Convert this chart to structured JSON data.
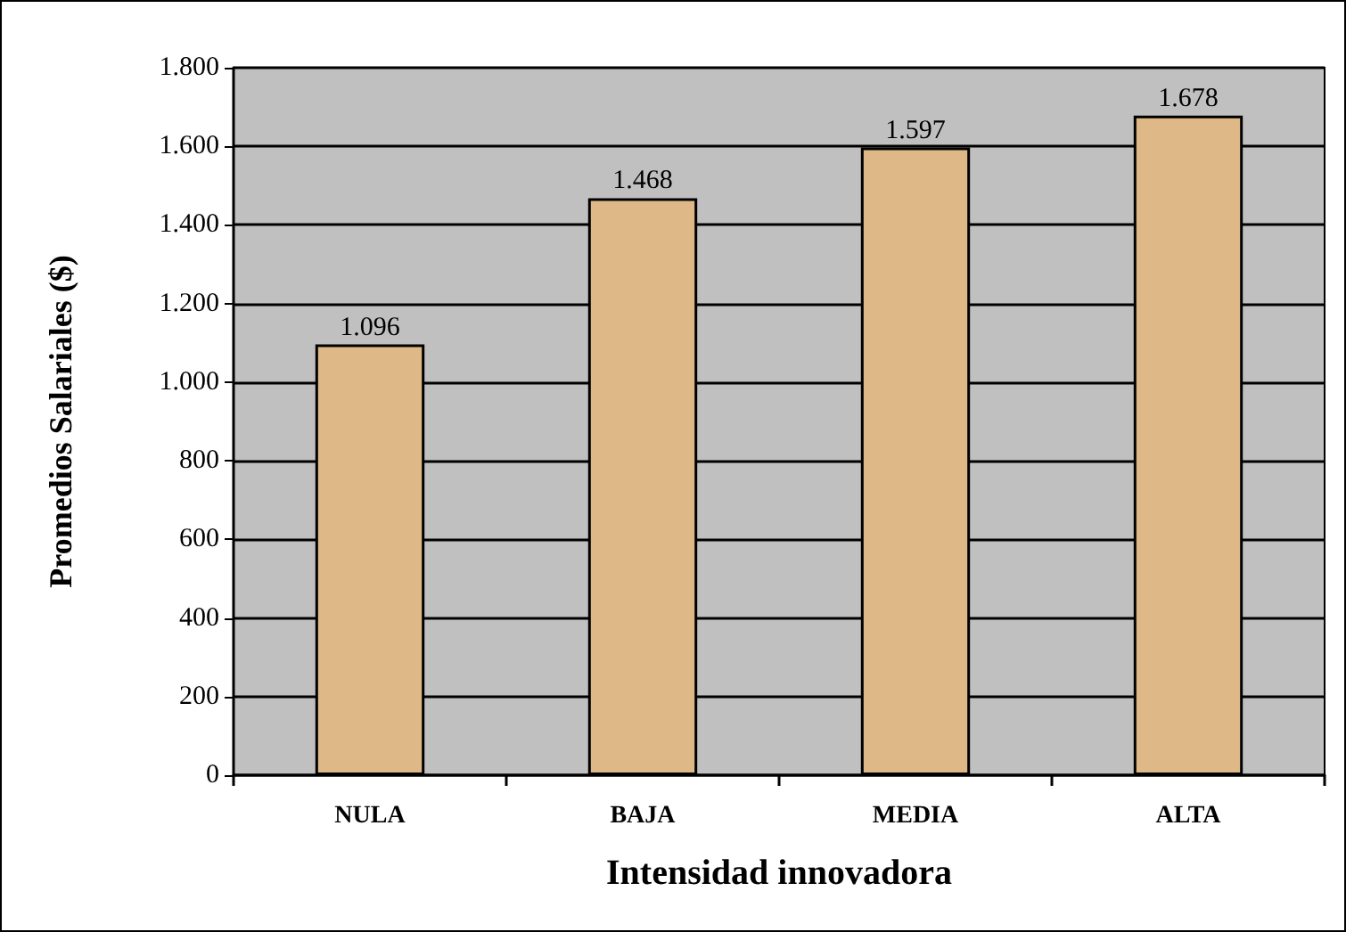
{
  "chart_data": {
    "type": "bar",
    "xlabel": "Intensidad innovadora",
    "ylabel": "Promedios Salariales ($)",
    "categories": [
      "NULA",
      "BAJA",
      "MEDIA",
      "ALTA"
    ],
    "values": [
      1096,
      1468,
      1597,
      1678
    ],
    "color": "#deb887",
    "value_labels": [
      "1.096",
      "1.468",
      "1.597",
      "1.678"
    ],
    "ylim": [
      0,
      1800
    ],
    "yticks": [
      0,
      200,
      400,
      600,
      800,
      {
        "value": 1000,
        "label": "1.000"
      },
      {
        "value": 1200,
        "label": "1.200"
      },
      {
        "value": 1400,
        "label": "1.400"
      },
      {
        "value": 1600,
        "label": "1.600"
      },
      {
        "value": 1800,
        "label": "1.800"
      }
    ],
    "grid": "y"
  }
}
